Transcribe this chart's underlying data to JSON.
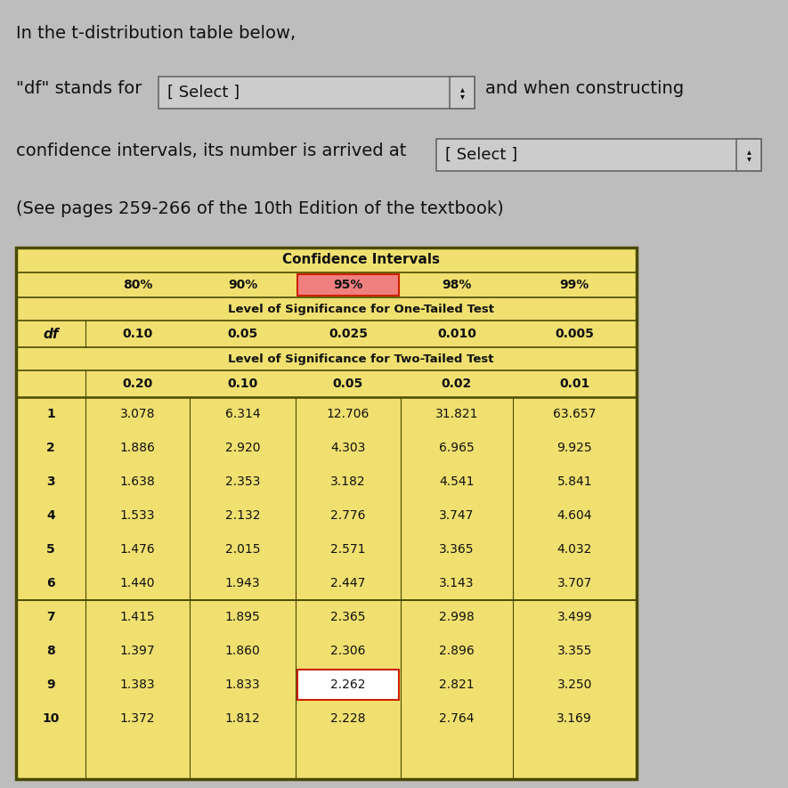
{
  "title_line1": "In the t-distribution table below,",
  "line2_prefix": "\"df\" stands for",
  "select1_text": "[ Select ]",
  "line2_suffix": "and when constructing",
  "line3_prefix": "confidence intervals, its number is arrived at",
  "select2_text": "[ Select ]",
  "line4": "(See pages 259-266 of the 10th Edition of the textbook)",
  "table_header_main": "Confidence Intervals",
  "ci_headers": [
    "80%",
    "90%",
    "95%",
    "98%",
    "99%"
  ],
  "one_tailed_label": "Level of Significance for One-Tailed Test",
  "one_tailed_vals": [
    "0.10",
    "0.05",
    "0.025",
    "0.010",
    "0.005"
  ],
  "two_tailed_label": "Level of Significance for Two-Tailed Test",
  "two_tailed_vals": [
    "0.20",
    "0.10",
    "0.05",
    "0.02",
    "0.01"
  ],
  "df_label": "df",
  "data_rows": [
    [
      "1",
      "3.078",
      "6.314",
      "12.706",
      "31.821",
      "63.657"
    ],
    [
      "2",
      "1.886",
      "2.920",
      "4.303",
      "6.965",
      "9.925"
    ],
    [
      "3",
      "1.638",
      "2.353",
      "3.182",
      "4.541",
      "5.841"
    ],
    [
      "4",
      "1.533",
      "2.132",
      "2.776",
      "3.747",
      "4.604"
    ],
    [
      "5",
      "1.476",
      "2.015",
      "2.571",
      "3.365",
      "4.032"
    ],
    [
      "6",
      "1.440",
      "1.943",
      "2.447",
      "3.143",
      "3.707"
    ],
    [
      "7",
      "1.415",
      "1.895",
      "2.365",
      "2.998",
      "3.499"
    ],
    [
      "8",
      "1.397",
      "1.860",
      "2.306",
      "2.896",
      "3.355"
    ],
    [
      "9",
      "1.383",
      "1.833",
      "2.262",
      "2.821",
      "3.250"
    ],
    [
      "10",
      "1.372",
      "1.812",
      "2.228",
      "2.764",
      "3.169"
    ]
  ],
  "highlighted_cell_row": 8,
  "highlighted_cell_col": 3,
  "ci_highlight_col": 2,
  "bg_color": "#bdbdbd",
  "table_bg": "#f0e070",
  "table_border": "#4a4a00",
  "select_box_bg": "#cccccc",
  "highlight_ci_bg": "#f08080",
  "highlight_cell_bg": "#ffffff",
  "text_color": "#111111",
  "font_size_title": 14,
  "font_size_body": 13,
  "font_size_table": 10
}
